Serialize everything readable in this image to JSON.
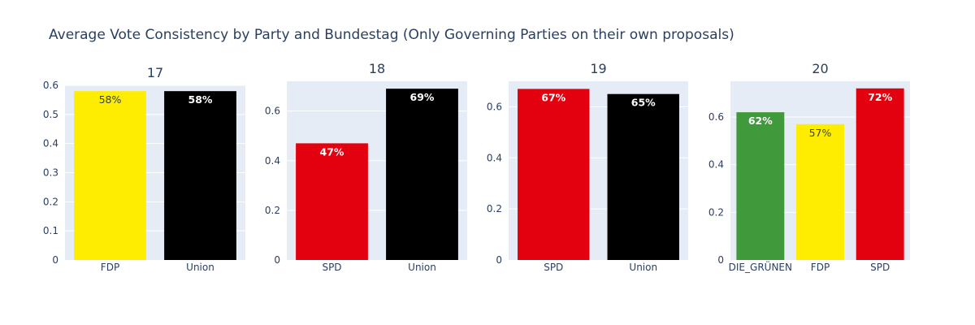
{
  "title": "Average Vote Consistency by Party and Bundestag (Only Governing Parties on their own proposals)",
  "colors": {
    "FDP": "#ffed00",
    "Union": "#000000",
    "SPD": "#e3000f",
    "DIE_GRÜNEN": "#409a3c",
    "plot_bg": "#e5ecf6",
    "grid": "#ffffff",
    "text": "#2a3f5f"
  },
  "chart_data": [
    {
      "type": "bar",
      "title": "17",
      "categories": [
        "FDP",
        "Union"
      ],
      "values": [
        0.58,
        0.58
      ],
      "labels": [
        "58%",
        "58%"
      ],
      "ylim": [
        0,
        0.6
      ],
      "yticks": [
        0,
        0.1,
        0.2,
        0.3,
        0.4,
        0.5,
        0.6
      ],
      "ytick_labels": [
        "0",
        "0.1",
        "0.2",
        "0.3",
        "0.4",
        "0.5",
        "0.6"
      ]
    },
    {
      "type": "bar",
      "title": "18",
      "categories": [
        "SPD",
        "Union"
      ],
      "values": [
        0.47,
        0.69
      ],
      "labels": [
        "47%",
        "69%"
      ],
      "ylim": [
        0,
        0.72
      ],
      "yticks": [
        0,
        0.2,
        0.4,
        0.6
      ],
      "ytick_labels": [
        "0",
        "0.2",
        "0.4",
        "0.6"
      ]
    },
    {
      "type": "bar",
      "title": "19",
      "categories": [
        "SPD",
        "Union"
      ],
      "values": [
        0.67,
        0.65
      ],
      "labels": [
        "67%",
        "65%"
      ],
      "ylim": [
        0,
        0.7
      ],
      "yticks": [
        0,
        0.2,
        0.4,
        0.6
      ],
      "ytick_labels": [
        "0",
        "0.2",
        "0.4",
        "0.6"
      ]
    },
    {
      "type": "bar",
      "title": "20",
      "categories": [
        "DIE_GRÜNEN",
        "FDP",
        "SPD"
      ],
      "values": [
        0.62,
        0.57,
        0.72
      ],
      "labels": [
        "62%",
        "57%",
        "72%"
      ],
      "ylim": [
        0,
        0.75
      ],
      "yticks": [
        0,
        0.2,
        0.4,
        0.6
      ],
      "ytick_labels": [
        "0",
        "0.2",
        "0.4",
        "0.6"
      ]
    }
  ]
}
